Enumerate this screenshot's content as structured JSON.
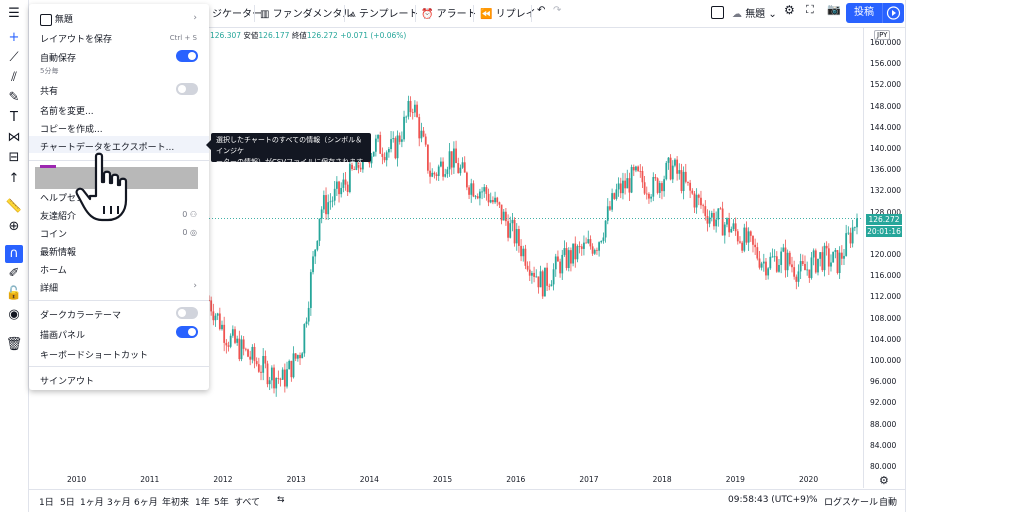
{
  "topbar": {
    "indicators_label": "ジケーター",
    "fundamentals_label": "ファンダメンタル",
    "template_label": "テンプレート",
    "alert_label": "アラート",
    "replay_label": "リプレイ",
    "layout_name": "無題",
    "post_label": "投稿"
  },
  "ohlc": {
    "high": "126.307",
    "low_label": "安値",
    "low": "126.177",
    "close_label": "終値",
    "close": "126.272",
    "change": "+0.071 (+0.06%)"
  },
  "menu": {
    "title": "無題",
    "save_layout": "レイアウトを保存",
    "save_shortcut": "Ctrl + S",
    "autosave": "自動保存",
    "autosave_sub": "5分毎",
    "share": "共有",
    "rename": "名前を変更...",
    "copy": "コピーを作成...",
    "export": "チャートデータをエクスポート...",
    "help": "ヘルプセン",
    "referral": "友達紹介",
    "referral_count": "0",
    "coins": "コイン",
    "coins_count": "0",
    "whats_new": "最新情報",
    "home": "ホーム",
    "more": "詳細",
    "dark_theme": "ダークカラーテーマ",
    "drawing_panel": "描画パネル",
    "shortcuts": "キーボードショートカット",
    "sign_out": "サインアウト"
  },
  "tooltip": {
    "line1": "選択したチャートのすべての情報（シンボル＆インジケ",
    "line2": "ーターの情報）がCSVファイルに保存されます"
  },
  "price_scale": {
    "currency": "JPY",
    "last_price": "126.272",
    "countdown": "20:01:16",
    "ticks": [
      "160.000",
      "156.000",
      "152.000",
      "148.000",
      "144.000",
      "140.000",
      "136.000",
      "132.000",
      "128.000",
      "124.000",
      "120.000",
      "116.000",
      "112.000",
      "108.000",
      "104.000",
      "100.000",
      "96.000",
      "92.000",
      "88.000",
      "84.000",
      "80.000"
    ]
  },
  "time_axis": {
    "ticks": [
      "2010",
      "2011",
      "2012",
      "2013",
      "2014",
      "2015",
      "2016",
      "2017",
      "2018",
      "2019",
      "2020"
    ]
  },
  "bottombar": {
    "ranges": [
      "1日",
      "5日",
      "1ヶ月",
      "3ヶ月",
      "6ヶ月",
      "年初来",
      "1年",
      "5年",
      "すべて"
    ],
    "time": "09:58:43 (UTC+9)",
    "percent": "%",
    "log": "ログスケール",
    "auto": "自動"
  },
  "chart_data": {
    "type": "candlestick",
    "symbol_currency": "JPY",
    "ylim": [
      80,
      160
    ],
    "x": [
      "2011-06",
      "2011-10",
      "2012-02",
      "2012-06",
      "2012-10",
      "2013-01",
      "2013-05",
      "2013-09",
      "2014-01",
      "2014-05",
      "2014-08",
      "2014-11",
      "2015-03",
      "2015-06",
      "2015-09",
      "2015-12",
      "2016-03",
      "2016-06",
      "2016-09",
      "2016-12",
      "2017-03",
      "2017-06",
      "2017-09",
      "2017-12",
      "2018-03",
      "2018-06",
      "2018-09",
      "2018-12",
      "2019-03",
      "2019-06",
      "2019-09",
      "2019-12",
      "2020-03",
      "2020-06",
      "2020-09",
      "2020-12"
    ],
    "close": [
      111,
      104,
      101,
      98,
      96,
      102,
      128,
      131,
      136,
      140,
      139,
      148,
      134,
      138,
      133,
      131,
      126,
      120,
      114,
      118,
      120,
      122,
      131,
      134,
      132,
      136,
      131,
      127,
      125,
      122,
      118,
      119,
      116,
      119,
      118,
      126.272
    ],
    "last": 126.272,
    "colors": {
      "up": "#26a69a",
      "down": "#ef5350"
    }
  }
}
